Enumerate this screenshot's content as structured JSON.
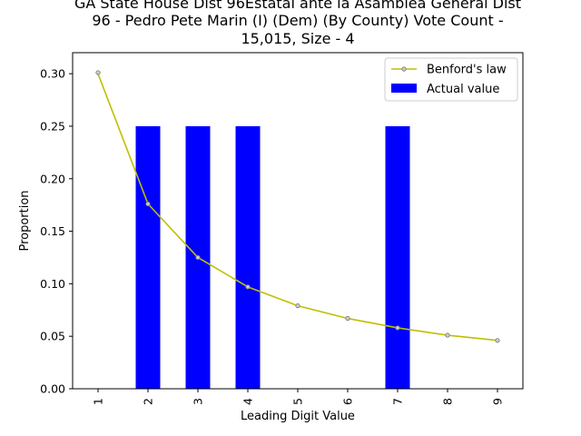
{
  "chart_data": {
    "type": "bar",
    "title_lines": [
      "GA State House Dist 96Estatal ante la Asamblea General Dist",
      "96 - Pedro Pete Marin (I) (Dem) (By County) Vote Count -",
      "15,015, Size - 4"
    ],
    "xlabel": "Leading Digit Value",
    "ylabel": "Proportion",
    "categories": [
      "1",
      "2",
      "3",
      "4",
      "5",
      "6",
      "7",
      "8",
      "9"
    ],
    "ylim": [
      0,
      0.32
    ],
    "yticks": [
      "0.00",
      "0.05",
      "0.10",
      "0.15",
      "0.20",
      "0.25",
      "0.30"
    ],
    "grid": false,
    "legend_position": "top-right",
    "series": [
      {
        "name": "Benford's law",
        "kind": "line",
        "color": "#bfbf00",
        "values": [
          0.301,
          0.176,
          0.125,
          0.097,
          0.079,
          0.067,
          0.058,
          0.051,
          0.046
        ]
      },
      {
        "name": "Actual value",
        "kind": "bar",
        "color": "#0000ff",
        "values": [
          0.0,
          0.25,
          0.25,
          0.25,
          0.0,
          0.0,
          0.25,
          0.0,
          0.0
        ]
      }
    ]
  }
}
